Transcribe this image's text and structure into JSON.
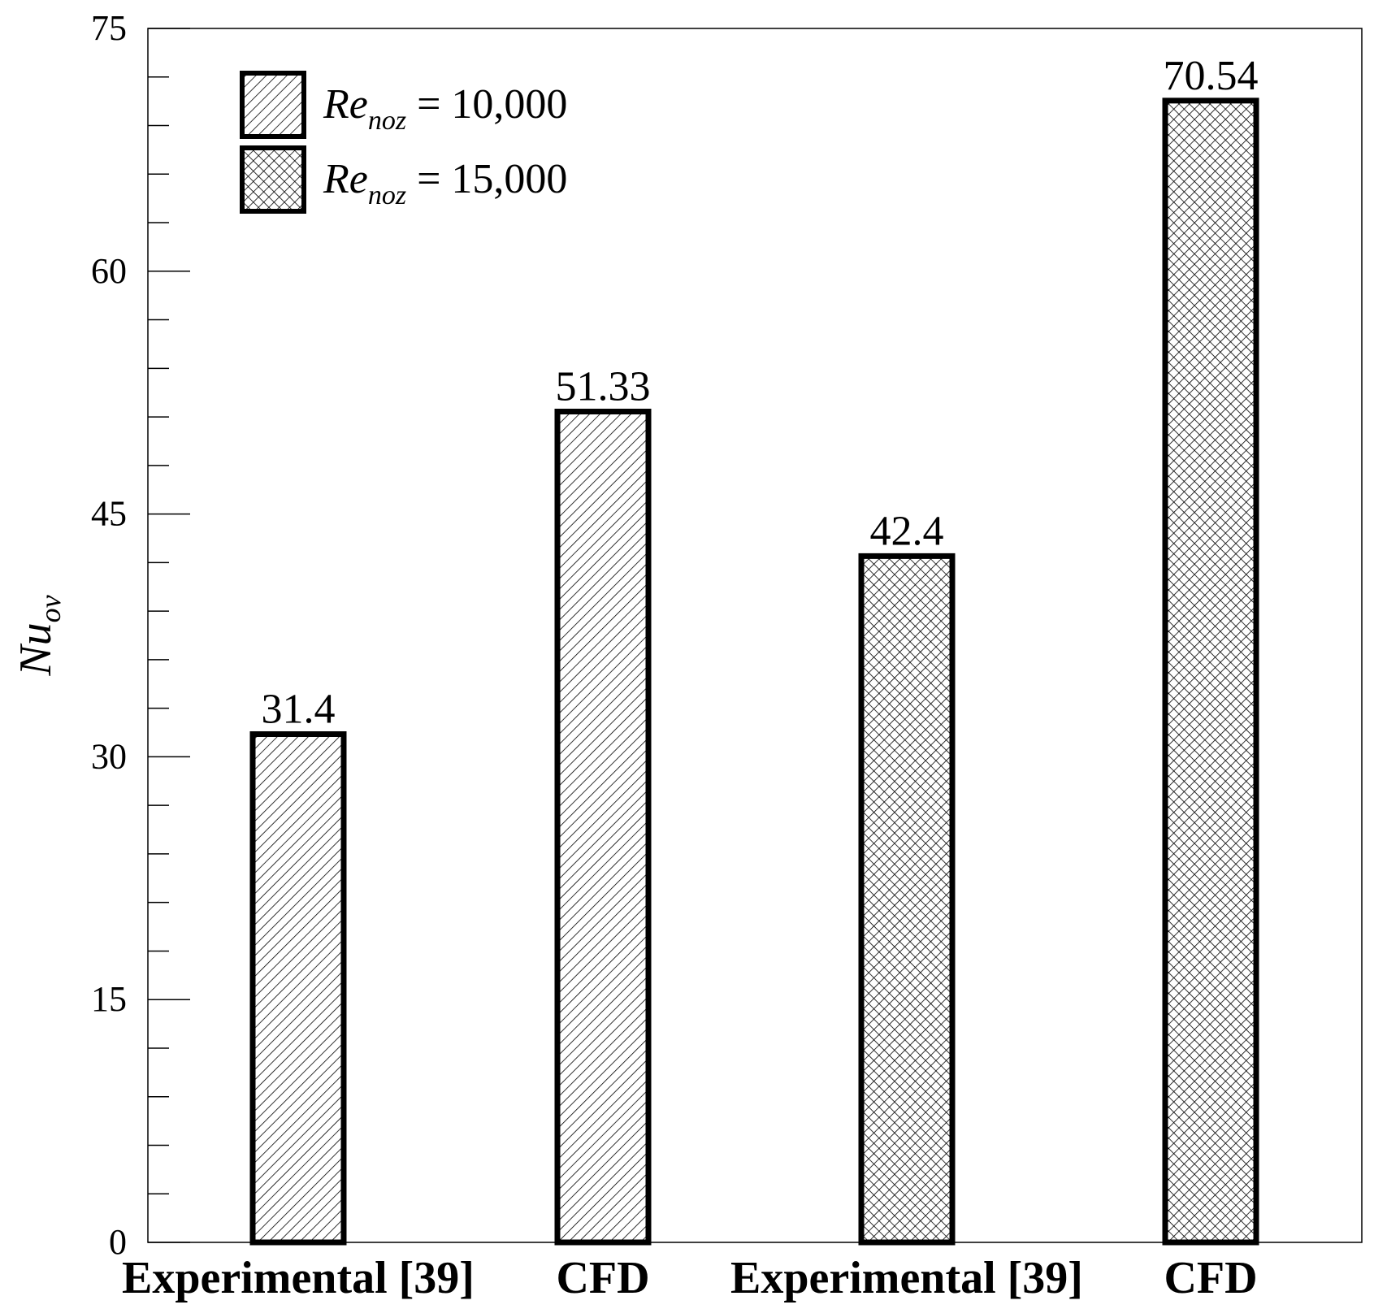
{
  "chart_data": {
    "type": "bar",
    "title": "",
    "xlabel": "",
    "ylabel": {
      "main": "Nu",
      "sub": "ov"
    },
    "ylim": [
      0,
      75
    ],
    "major_ticks": [
      0,
      15,
      30,
      45,
      60,
      75
    ],
    "minor_step": 3,
    "categories": [
      "Experimental [39]",
      "CFD",
      "Experimental [39]",
      "CFD"
    ],
    "values": [
      31.4,
      51.33,
      42.4,
      70.54
    ],
    "value_labels": [
      "31.4",
      "51.33",
      "42.4",
      "70.54"
    ],
    "series_index": [
      0,
      0,
      1,
      1
    ],
    "series": [
      {
        "name_main": "Re",
        "name_sub": "noz",
        "name_rest": " = 10,000",
        "pattern": "diagonal-hatch"
      },
      {
        "name_main": "Re",
        "name_sub": "noz",
        "name_rest": " = 15,000",
        "pattern": "cross-hatch"
      }
    ],
    "legend_position": "top-left",
    "colors": {
      "stroke": "#000000",
      "fill": "#ffffff"
    }
  }
}
